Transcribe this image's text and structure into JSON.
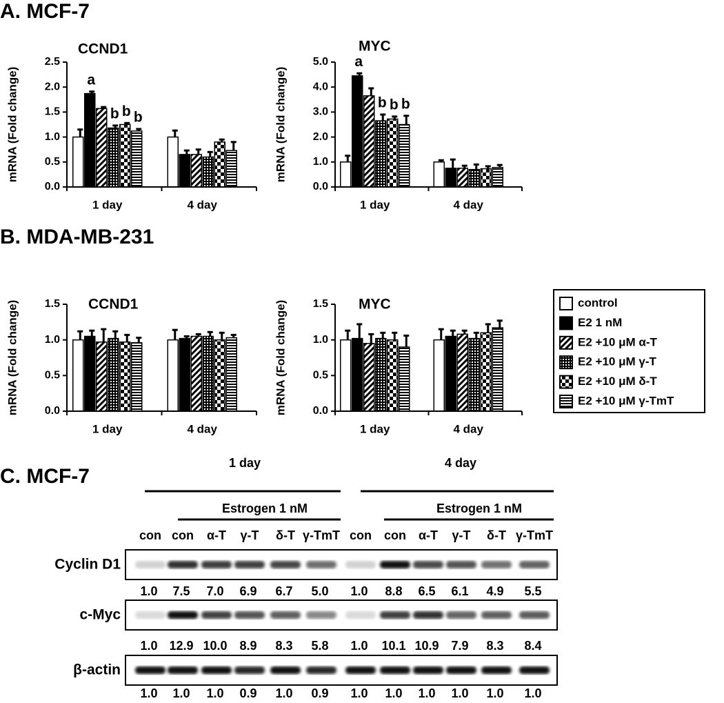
{
  "sections": [
    "A. MCF-7",
    "B. MDA-MB-231",
    "C. MCF-7"
  ],
  "chart_data": [
    {
      "type": "bar",
      "title": "CCND1",
      "ylabel": "mRNA (Fold change)",
      "categories": [
        "1 day",
        "4 day"
      ],
      "ylim": [
        0,
        2.5
      ],
      "yticks": [
        {
          "value": 0,
          "label": "0.0"
        },
        0.5,
        {
          "value": 1,
          "label": "1.0"
        },
        1.5,
        {
          "value": 2,
          "label": "2.0"
        },
        2.5
      ],
      "series": [
        {
          "name": "control",
          "color": "#000000",
          "pattern": "none",
          "values": [
            1.0,
            1.0
          ],
          "errors": [
            0.15,
            0.13
          ]
        },
        {
          "name": "E2 1 nM",
          "color": "#000000",
          "pattern": "solid",
          "values": [
            1.87,
            0.65
          ],
          "errors": [
            0.04,
            0.08
          ],
          "annotations": [
            "a",
            null
          ]
        },
        {
          "name": "E2 +10 μM α-T",
          "color": "#000000",
          "pattern": "diagonal",
          "values": [
            1.57,
            0.65
          ],
          "errors": [
            0.03,
            0.1
          ]
        },
        {
          "name": "E2 +10 μM γ-T",
          "color": "#000000",
          "pattern": "dots",
          "values": [
            1.18,
            0.6
          ],
          "errors": [
            0.05,
            0.1
          ],
          "annotations": [
            "b",
            null
          ]
        },
        {
          "name": "E2 +10 μM δ-T",
          "color": "#000000",
          "pattern": "checker",
          "values": [
            1.25,
            0.9
          ],
          "errors": [
            0.03,
            0.05
          ],
          "annotations": [
            "b",
            null
          ]
        },
        {
          "name": "E2 +10 μM γ-TmT",
          "color": "#000000",
          "pattern": "horizontal",
          "values": [
            1.12,
            0.73
          ],
          "errors": [
            0.04,
            0.17
          ],
          "annotations": [
            "b",
            null
          ]
        }
      ]
    },
    {
      "type": "bar",
      "title": "MYC",
      "ylabel": "mRNA (Fold change)",
      "categories": [
        "1 day",
        "4 day"
      ],
      "ylim": [
        0,
        5
      ],
      "yticks": [
        {
          "value": 0,
          "label": "0.0"
        },
        {
          "value": 1,
          "label": "1.0"
        },
        {
          "value": 2,
          "label": "2.0"
        },
        {
          "value": 3,
          "label": "3.0"
        },
        {
          "value": 4,
          "label": "4.0"
        },
        {
          "value": 5,
          "label": "5.0"
        }
      ],
      "series": [
        {
          "name": "control",
          "color": "#000000",
          "pattern": "none",
          "values": [
            1.0,
            1.0
          ],
          "errors": [
            0.25,
            0.07
          ]
        },
        {
          "name": "E2 1 nM",
          "color": "#000000",
          "pattern": "solid",
          "values": [
            4.45,
            0.75
          ],
          "errors": [
            0.1,
            0.35
          ],
          "annotations": [
            "a",
            null
          ]
        },
        {
          "name": "E2 +10 μM α-T",
          "color": "#000000",
          "pattern": "diagonal",
          "values": [
            3.65,
            0.75
          ],
          "errors": [
            0.3,
            0.1
          ]
        },
        {
          "name": "E2 +10 μM γ-T",
          "color": "#000000",
          "pattern": "dots",
          "values": [
            2.65,
            0.7
          ],
          "errors": [
            0.25,
            0.2
          ],
          "annotations": [
            "b",
            null
          ]
        },
        {
          "name": "E2 +10 μM δ-T",
          "color": "#000000",
          "pattern": "checker",
          "values": [
            2.72,
            0.73
          ],
          "errors": [
            0.1,
            0.1
          ],
          "annotations": [
            "b",
            null
          ]
        },
        {
          "name": "E2 +10 μM γ-TmT",
          "color": "#000000",
          "pattern": "horizontal",
          "values": [
            2.5,
            0.78
          ],
          "errors": [
            0.35,
            0.1
          ],
          "annotations": [
            "b",
            null
          ]
        }
      ]
    },
    {
      "type": "bar",
      "title": "CCND1",
      "ylabel": "mRNA (Fold change)",
      "categories": [
        "1 day",
        "4 day"
      ],
      "ylim": [
        0,
        1.5
      ],
      "yticks": [
        {
          "value": 0,
          "label": "0.0"
        },
        0.5,
        {
          "value": 1,
          "label": "1.0"
        },
        1.5
      ],
      "series": [
        {
          "name": "control",
          "color": "#000000",
          "pattern": "none",
          "values": [
            1.0,
            1.0
          ],
          "errors": [
            0.12,
            0.14
          ]
        },
        {
          "name": "E2 1 nM",
          "color": "#000000",
          "pattern": "solid",
          "values": [
            1.05,
            1.02
          ],
          "errors": [
            0.08,
            0.03
          ]
        },
        {
          "name": "E2 +10 μM α-T",
          "color": "#000000",
          "pattern": "diagonal",
          "values": [
            0.97,
            1.05
          ],
          "errors": [
            0.18,
            0.03
          ]
        },
        {
          "name": "E2 +10 μM γ-T",
          "color": "#000000",
          "pattern": "dots",
          "values": [
            1.02,
            1.05
          ],
          "errors": [
            0.1,
            0.06
          ]
        },
        {
          "name": "E2 +10 μM δ-T",
          "color": "#000000",
          "pattern": "checker",
          "values": [
            0.97,
            1.0
          ],
          "errors": [
            0.1,
            0.1
          ]
        },
        {
          "name": "E2 +10 μM γ-TmT",
          "color": "#000000",
          "pattern": "horizontal",
          "values": [
            0.96,
            1.03
          ],
          "errors": [
            0.07,
            0.04
          ]
        }
      ]
    },
    {
      "type": "bar",
      "title": "MYC",
      "ylabel": "mRNA (Fold change)",
      "categories": [
        "1 day",
        "4 day"
      ],
      "ylim": [
        0,
        1.5
      ],
      "yticks": [
        {
          "value": 0,
          "label": "0.0"
        },
        0.5,
        {
          "value": 1,
          "label": "1.0"
        },
        1.5
      ],
      "series": [
        {
          "name": "control",
          "color": "#000000",
          "pattern": "none",
          "values": [
            1.0,
            1.0
          ],
          "errors": [
            0.13,
            0.15
          ]
        },
        {
          "name": "E2 1 nM",
          "color": "#000000",
          "pattern": "solid",
          "values": [
            1.02,
            1.05
          ],
          "errors": [
            0.2,
            0.08
          ]
        },
        {
          "name": "E2 +10 μM α-T",
          "color": "#000000",
          "pattern": "diagonal",
          "values": [
            0.95,
            1.08
          ],
          "errors": [
            0.13,
            0.05
          ]
        },
        {
          "name": "E2 +10 μM γ-T",
          "color": "#000000",
          "pattern": "dots",
          "values": [
            1.02,
            1.02
          ],
          "errors": [
            0.08,
            0.08
          ]
        },
        {
          "name": "E2 +10 μM δ-T",
          "color": "#000000",
          "pattern": "checker",
          "values": [
            1.0,
            1.1
          ],
          "errors": [
            0.1,
            0.12
          ]
        },
        {
          "name": "E2 +10 μM γ-TmT",
          "color": "#000000",
          "pattern": "horizontal",
          "values": [
            0.9,
            1.17
          ],
          "errors": [
            0.16,
            0.1
          ]
        }
      ]
    }
  ],
  "blot": {
    "groups": [
      {
        "label": "1 day",
        "treatment": "Estrogen 1 nM"
      },
      {
        "label": "4 day",
        "treatment": "Estrogen 1 nM"
      }
    ],
    "lanes": [
      "con",
      "con",
      "α-T",
      "γ-T",
      "δ-T",
      "γ-TmT",
      "con",
      "con",
      "α-T",
      "γ-T",
      "δ-T",
      "γ-TmT"
    ],
    "rows": [
      {
        "name": "Cyclin D1",
        "quant": [
          "1.0",
          "7.5",
          "7.0",
          "6.9",
          "6.7",
          "5.0",
          "1.0",
          "8.8",
          "6.5",
          "6.1",
          "4.9",
          "5.5"
        ]
      },
      {
        "name": "c-Myc",
        "quant": [
          "1.0",
          "12.9",
          "10.0",
          "8.9",
          "8.3",
          "5.8",
          "1.0",
          "10.1",
          "10.9",
          "7.9",
          "8.3",
          "8.4"
        ]
      },
      {
        "name": "β-actin",
        "quant": [
          "1.0",
          "1.0",
          "1.0",
          "0.9",
          "1.0",
          "0.9",
          "1.0",
          "1.0",
          "1.0",
          "1.0",
          "1.0",
          "1.0"
        ]
      }
    ]
  }
}
